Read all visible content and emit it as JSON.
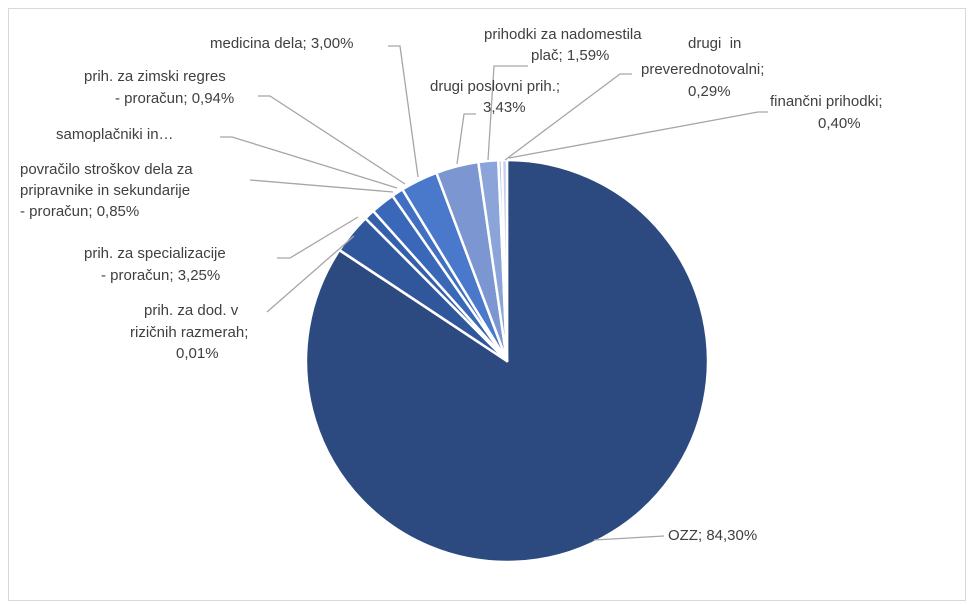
{
  "chart_data": {
    "type": "pie",
    "labels": [
      [
        "OZZ; 84,30%"
      ],
      [
        "prih. za dod. v",
        "rizičnih razmerah;",
        "0,01%"
      ],
      [
        "prih. za specializacije",
        "- proračun; 3,25%"
      ],
      [
        "povračilo stroškov dela za",
        "pripravnike in sekundarije",
        "- proračun; 0,85%"
      ],
      [
        "samoplačniki in…"
      ],
      [
        "prih. za zimski regres",
        "- proračun; 0,94%"
      ],
      [
        "medicina dela; 3,00%"
      ],
      [
        "drugi poslovni prih.;",
        "3,43%"
      ],
      [
        "prihodki za nadomestila",
        "plač; 1,59%"
      ],
      [
        "drugi  in",
        "preverednotovalni;",
        "0,29%"
      ],
      [
        "finančni prihodki;",
        "0,40%"
      ]
    ],
    "values": [
      84.3,
      0.01,
      3.25,
      0.85,
      1.94,
      0.94,
      3.0,
      3.43,
      1.59,
      0.29,
      0.4
    ],
    "colors": [
      "#2c4a80",
      "#2c4a80",
      "#30579c",
      "#345fab",
      "#3b67b8",
      "#416fc2",
      "#4a79cc",
      "#7b96d0",
      "#8ba4d9",
      "#aebfe5",
      "#c4d0ec"
    ]
  }
}
